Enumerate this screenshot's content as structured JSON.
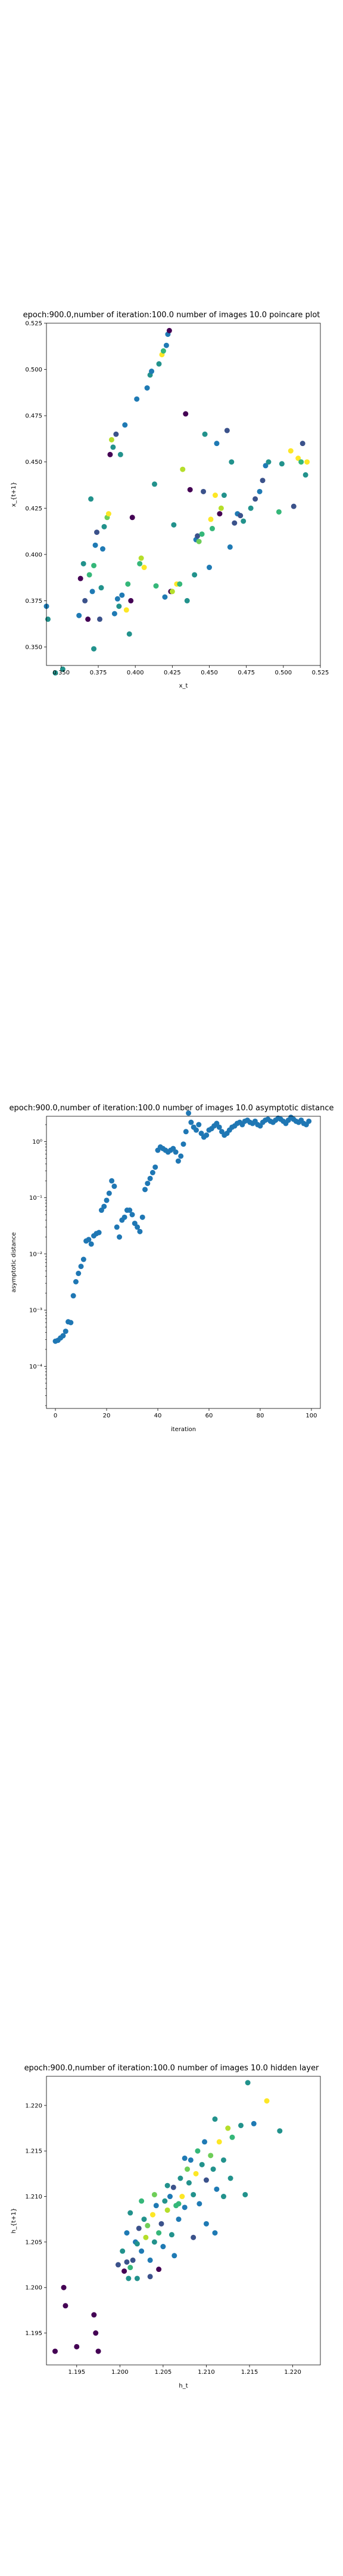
{
  "chart_data": [
    {
      "type": "scatter",
      "title": "epoch:900.0,number of iteration:100.0  number of images 10.0 poincare plot",
      "xlabel": "x_t",
      "ylabel": "x_{t+1}",
      "xlim": [
        0.34,
        0.525
      ],
      "ylim": [
        0.34,
        0.525
      ],
      "xticks": [
        "0.350",
        "0.375",
        "0.400",
        "0.425",
        "0.450",
        "0.475",
        "0.500",
        "0.525"
      ],
      "yticks": [
        "0.350",
        "0.375",
        "0.400",
        "0.425",
        "0.450",
        "0.475",
        "0.500",
        "0.525"
      ],
      "grid": false,
      "points": [
        [
          0.34,
          0.372,
          "#1f7ab4"
        ],
        [
          0.341,
          0.365,
          "#22928c"
        ],
        [
          0.346,
          0.336,
          "#22928c"
        ],
        [
          0.351,
          0.338,
          "#22928c"
        ],
        [
          0.362,
          0.367,
          "#1f7ab4"
        ],
        [
          0.363,
          0.387,
          "#440154"
        ],
        [
          0.365,
          0.395,
          "#22928c"
        ],
        [
          0.366,
          0.375,
          "#3b528b"
        ],
        [
          0.368,
          0.365,
          "#440154"
        ],
        [
          0.369,
          0.389,
          "#35b779"
        ],
        [
          0.37,
          0.43,
          "#22928c"
        ],
        [
          0.371,
          0.38,
          "#1f7ab4"
        ],
        [
          0.372,
          0.394,
          "#35b779"
        ],
        [
          0.372,
          0.349,
          "#22928c"
        ],
        [
          0.373,
          0.405,
          "#1f7ab4"
        ],
        [
          0.374,
          0.412,
          "#3b528b"
        ],
        [
          0.376,
          0.365,
          "#3b528b"
        ],
        [
          0.377,
          0.382,
          "#22928c"
        ],
        [
          0.378,
          0.403,
          "#1f7ab4"
        ],
        [
          0.379,
          0.415,
          "#22928c"
        ],
        [
          0.381,
          0.42,
          "#6ece58"
        ],
        [
          0.382,
          0.422,
          "#fde725"
        ],
        [
          0.383,
          0.454,
          "#440154"
        ],
        [
          0.384,
          0.462,
          "#b5de2b"
        ],
        [
          0.385,
          0.458,
          "#22928c"
        ],
        [
          0.386,
          0.368,
          "#1f7ab4"
        ],
        [
          0.387,
          0.465,
          "#3b528b"
        ],
        [
          0.388,
          0.376,
          "#1f7ab4"
        ],
        [
          0.389,
          0.372,
          "#22928c"
        ],
        [
          0.39,
          0.454,
          "#22928c"
        ],
        [
          0.391,
          0.378,
          "#1f7ab4"
        ],
        [
          0.393,
          0.47,
          "#1f7ab4"
        ],
        [
          0.394,
          0.37,
          "#fde725"
        ],
        [
          0.395,
          0.384,
          "#35b779"
        ],
        [
          0.396,
          0.357,
          "#22928c"
        ],
        [
          0.397,
          0.375,
          "#440154"
        ],
        [
          0.398,
          0.42,
          "#440154"
        ],
        [
          0.401,
          0.484,
          "#1f7ab4"
        ],
        [
          0.403,
          0.395,
          "#35b779"
        ],
        [
          0.404,
          0.398,
          "#b5de2b"
        ],
        [
          0.406,
          0.393,
          "#fde725"
        ],
        [
          0.408,
          0.49,
          "#1f7ab4"
        ],
        [
          0.41,
          0.497,
          "#22928c"
        ],
        [
          0.411,
          0.499,
          "#1f7ab4"
        ],
        [
          0.413,
          0.438,
          "#22928c"
        ],
        [
          0.414,
          0.383,
          "#35b779"
        ],
        [
          0.416,
          0.503,
          "#22928c"
        ],
        [
          0.418,
          0.508,
          "#fde725"
        ],
        [
          0.419,
          0.51,
          "#35b779"
        ],
        [
          0.42,
          0.377,
          "#1f7ab4"
        ],
        [
          0.421,
          0.513,
          "#1f7ab4"
        ],
        [
          0.422,
          0.519,
          "#1f7ab4"
        ],
        [
          0.423,
          0.521,
          "#440154"
        ],
        [
          0.424,
          0.38,
          "#440154"
        ],
        [
          0.425,
          0.38,
          "#b5de2b"
        ],
        [
          0.426,
          0.416,
          "#22928c"
        ],
        [
          0.428,
          0.384,
          "#fde725"
        ],
        [
          0.43,
          0.384,
          "#35b779"
        ],
        [
          0.432,
          0.446,
          "#b5de2b"
        ],
        [
          0.434,
          0.476,
          "#440154"
        ],
        [
          0.435,
          0.375,
          "#22928c"
        ],
        [
          0.437,
          0.435,
          "#440154"
        ],
        [
          0.44,
          0.389,
          "#22928c"
        ],
        [
          0.441,
          0.408,
          "#1f7ab4"
        ],
        [
          0.442,
          0.41,
          "#3b528b"
        ],
        [
          0.443,
          0.407,
          "#6ece58"
        ],
        [
          0.445,
          0.411,
          "#35b779"
        ],
        [
          0.446,
          0.434,
          "#3b528b"
        ],
        [
          0.447,
          0.465,
          "#22928c"
        ],
        [
          0.45,
          0.393,
          "#1f7ab4"
        ],
        [
          0.451,
          0.419,
          "#fde725"
        ],
        [
          0.452,
          0.414,
          "#35b779"
        ],
        [
          0.454,
          0.432,
          "#fde725"
        ],
        [
          0.455,
          0.46,
          "#1f7ab4"
        ],
        [
          0.457,
          0.422,
          "#440154"
        ],
        [
          0.458,
          0.425,
          "#b5de2b"
        ],
        [
          0.46,
          0.432,
          "#22928c"
        ],
        [
          0.462,
          0.467,
          "#3b528b"
        ],
        [
          0.464,
          0.404,
          "#1f7ab4"
        ],
        [
          0.465,
          0.45,
          "#22928c"
        ],
        [
          0.467,
          0.417,
          "#3b528b"
        ],
        [
          0.469,
          0.422,
          "#1f7ab4"
        ],
        [
          0.471,
          0.421,
          "#3b528b"
        ],
        [
          0.473,
          0.418,
          "#22928c"
        ],
        [
          0.478,
          0.425,
          "#22928c"
        ],
        [
          0.481,
          0.43,
          "#3b528b"
        ],
        [
          0.484,
          0.434,
          "#1f7ab4"
        ],
        [
          0.486,
          0.44,
          "#3b528b"
        ],
        [
          0.488,
          0.448,
          "#1f7ab4"
        ],
        [
          0.49,
          0.45,
          "#22928c"
        ],
        [
          0.497,
          0.423,
          "#35b779"
        ],
        [
          0.499,
          0.449,
          "#22928c"
        ],
        [
          0.505,
          0.456,
          "#fde725"
        ],
        [
          0.507,
          0.426,
          "#3b528b"
        ],
        [
          0.51,
          0.452,
          "#fde725"
        ],
        [
          0.513,
          0.46,
          "#3b528b"
        ],
        [
          0.515,
          0.443,
          "#22928c"
        ],
        [
          0.516,
          0.45,
          "#fde725"
        ],
        [
          0.512,
          0.45,
          "#35b779"
        ]
      ]
    },
    {
      "type": "scatter",
      "title": "epoch:900.0,number of iteration:100.0  number of images 10.0 asymptotic distance",
      "xlabel": "iteration",
      "ylabel": "asymptotic distance",
      "xlim": [
        -3.5,
        103.5
      ],
      "ylim_log10": [
        -4.75,
        0.45
      ],
      "yscale": "log",
      "xticks": [
        0,
        20,
        40,
        60,
        80,
        100
      ],
      "yticks": [
        "10⁻⁴",
        "10⁻³",
        "10⁻²",
        "10⁻¹",
        "10⁰"
      ],
      "grid": false,
      "color": "#1f77b4",
      "y": [
        0.00028,
        0.00029,
        0.00032,
        0.00035,
        0.00042,
        0.00062,
        0.0006,
        0.0018,
        0.0032,
        0.0045,
        0.006,
        0.008,
        0.017,
        0.018,
        0.015,
        0.021,
        0.023,
        0.024,
        0.06,
        0.07,
        0.09,
        0.12,
        0.2,
        0.16,
        0.03,
        0.02,
        0.04,
        0.045,
        0.06,
        0.06,
        0.05,
        0.035,
        0.03,
        0.025,
        0.045,
        0.14,
        0.18,
        0.22,
        0.28,
        0.35,
        0.7,
        0.8,
        0.75,
        0.7,
        0.65,
        0.7,
        0.75,
        0.65,
        0.45,
        0.55,
        0.9,
        1.5,
        3.2,
        2.2,
        1.8,
        1.6,
        2.0,
        1.4,
        1.2,
        1.3,
        1.6,
        1.7,
        1.9,
        2.1,
        1.8,
        1.5,
        1.3,
        1.4,
        1.6,
        1.8,
        1.9,
        2.1,
        2.2,
        2.0,
        2.3,
        2.4,
        2.2,
        2.1,
        2.3,
        2.0,
        1.9,
        2.2,
        2.4,
        2.5,
        2.3,
        2.2,
        2.4,
        2.6,
        2.5,
        2.3,
        2.1,
        2.4,
        2.7,
        2.5,
        2.3,
        2.2,
        2.4,
        2.1,
        2.0,
        2.3
      ]
    },
    {
      "type": "scatter",
      "title": "epoch:900.0,number of iteration:100.0  number of images 10.0 hidden layer",
      "xlabel": "h_t",
      "ylabel": "h_{t+1}",
      "xlim": [
        1.1915,
        1.2232
      ],
      "ylim": [
        1.1915,
        1.2232
      ],
      "xticks": [
        "1.195",
        "1.200",
        "1.205",
        "1.210",
        "1.215",
        "1.220"
      ],
      "yticks": [
        "1.195",
        "1.200",
        "1.205",
        "1.210",
        "1.215",
        "1.220"
      ],
      "grid": false,
      "points": [
        [
          1.1925,
          1.193,
          "#440154"
        ],
        [
          1.1935,
          1.2,
          "#440154"
        ],
        [
          1.1937,
          1.198,
          "#440154"
        ],
        [
          1.195,
          1.1935,
          "#440154"
        ],
        [
          1.197,
          1.197,
          "#440154"
        ],
        [
          1.1972,
          1.195,
          "#440154"
        ],
        [
          1.1975,
          1.193,
          "#440154"
        ],
        [
          1.1998,
          1.2025,
          "#3b528b"
        ],
        [
          1.2003,
          1.204,
          "#22928c"
        ],
        [
          1.2005,
          1.2018,
          "#440154"
        ],
        [
          1.2008,
          1.2028,
          "#3b528b"
        ],
        [
          1.201,
          1.201,
          "#22928c"
        ],
        [
          1.2012,
          1.2022,
          "#35b779"
        ],
        [
          1.2015,
          1.203,
          "#3b528b"
        ],
        [
          1.2018,
          1.205,
          "#1f7ab4"
        ],
        [
          1.202,
          1.201,
          "#22928c"
        ],
        [
          1.2022,
          1.2065,
          "#3b528b"
        ],
        [
          1.2025,
          1.204,
          "#1f7ab4"
        ],
        [
          1.2028,
          1.2075,
          "#22928c"
        ],
        [
          1.203,
          1.2055,
          "#b5de2b"
        ],
        [
          1.2032,
          1.2068,
          "#6ece58"
        ],
        [
          1.2035,
          1.203,
          "#1f7ab4"
        ],
        [
          1.2038,
          1.208,
          "#fde725"
        ],
        [
          1.204,
          1.205,
          "#22928c"
        ],
        [
          1.2042,
          1.209,
          "#1f7ab4"
        ],
        [
          1.2045,
          1.206,
          "#35b779"
        ],
        [
          1.2048,
          1.207,
          "#3b528b"
        ],
        [
          1.205,
          1.2045,
          "#1f7ab4"
        ],
        [
          1.2052,
          1.2095,
          "#22928c"
        ],
        [
          1.2055,
          1.2085,
          "#b5de2b"
        ],
        [
          1.2058,
          1.21,
          "#1f7ab4"
        ],
        [
          1.206,
          1.2058,
          "#22928c"
        ],
        [
          1.2062,
          1.211,
          "#3b528b"
        ],
        [
          1.2065,
          1.209,
          "#35b779"
        ],
        [
          1.2068,
          1.2075,
          "#1f7ab4"
        ],
        [
          1.207,
          1.212,
          "#22928c"
        ],
        [
          1.2072,
          1.21,
          "#fde725"
        ],
        [
          1.2075,
          1.2088,
          "#1f7ab4"
        ],
        [
          1.2078,
          1.213,
          "#6ece58"
        ],
        [
          1.208,
          1.2115,
          "#22928c"
        ],
        [
          1.2082,
          1.214,
          "#1f7ab4"
        ],
        [
          1.2085,
          1.2102,
          "#22928c"
        ],
        [
          1.2088,
          1.2125,
          "#fde725"
        ],
        [
          1.209,
          1.215,
          "#35b779"
        ],
        [
          1.2092,
          1.2092,
          "#1f7ab4"
        ],
        [
          1.2095,
          1.2135,
          "#22928c"
        ],
        [
          1.2098,
          1.216,
          "#1f7ab4"
        ],
        [
          1.21,
          1.2118,
          "#3b528b"
        ],
        [
          1.2105,
          1.2145,
          "#6ece58"
        ],
        [
          1.2108,
          1.213,
          "#22928c"
        ],
        [
          1.211,
          1.2185,
          "#22928c"
        ],
        [
          1.2112,
          1.2108,
          "#1f7ab4"
        ],
        [
          1.2115,
          1.216,
          "#fde725"
        ],
        [
          1.212,
          1.214,
          "#22928c"
        ],
        [
          1.2125,
          1.2175,
          "#b5de2b"
        ],
        [
          1.2128,
          1.212,
          "#22928c"
        ],
        [
          1.213,
          1.2165,
          "#35b779"
        ],
        [
          1.214,
          1.2178,
          "#22928c"
        ],
        [
          1.2148,
          1.2225,
          "#22928c"
        ],
        [
          1.2155,
          1.218,
          "#1f7ab4"
        ],
        [
          1.217,
          1.2205,
          "#fde725"
        ],
        [
          1.2185,
          1.2172,
          "#22928c"
        ],
        [
          1.2145,
          1.2102,
          "#22928c"
        ],
        [
          1.211,
          1.206,
          "#1f7ab4"
        ],
        [
          1.21,
          1.207,
          "#1f7ab4"
        ],
        [
          1.2085,
          1.2055,
          "#3b528b"
        ],
        [
          1.2063,
          1.2035,
          "#1f7ab4"
        ],
        [
          1.2045,
          1.202,
          "#440154"
        ],
        [
          1.2035,
          1.2012,
          "#3b528b"
        ],
        [
          1.202,
          1.2048,
          "#22928c"
        ],
        [
          1.2008,
          1.206,
          "#1f7ab4"
        ],
        [
          1.2012,
          1.2082,
          "#22928c"
        ],
        [
          1.2025,
          1.2095,
          "#35b779"
        ],
        [
          1.204,
          1.2102,
          "#6ece58"
        ],
        [
          1.2055,
          1.2112,
          "#22928c"
        ],
        [
          1.2068,
          1.2092,
          "#35b779"
        ],
        [
          1.2075,
          1.2142,
          "#1f7ab4"
        ],
        [
          1.212,
          1.21,
          "#22928c"
        ]
      ]
    }
  ]
}
